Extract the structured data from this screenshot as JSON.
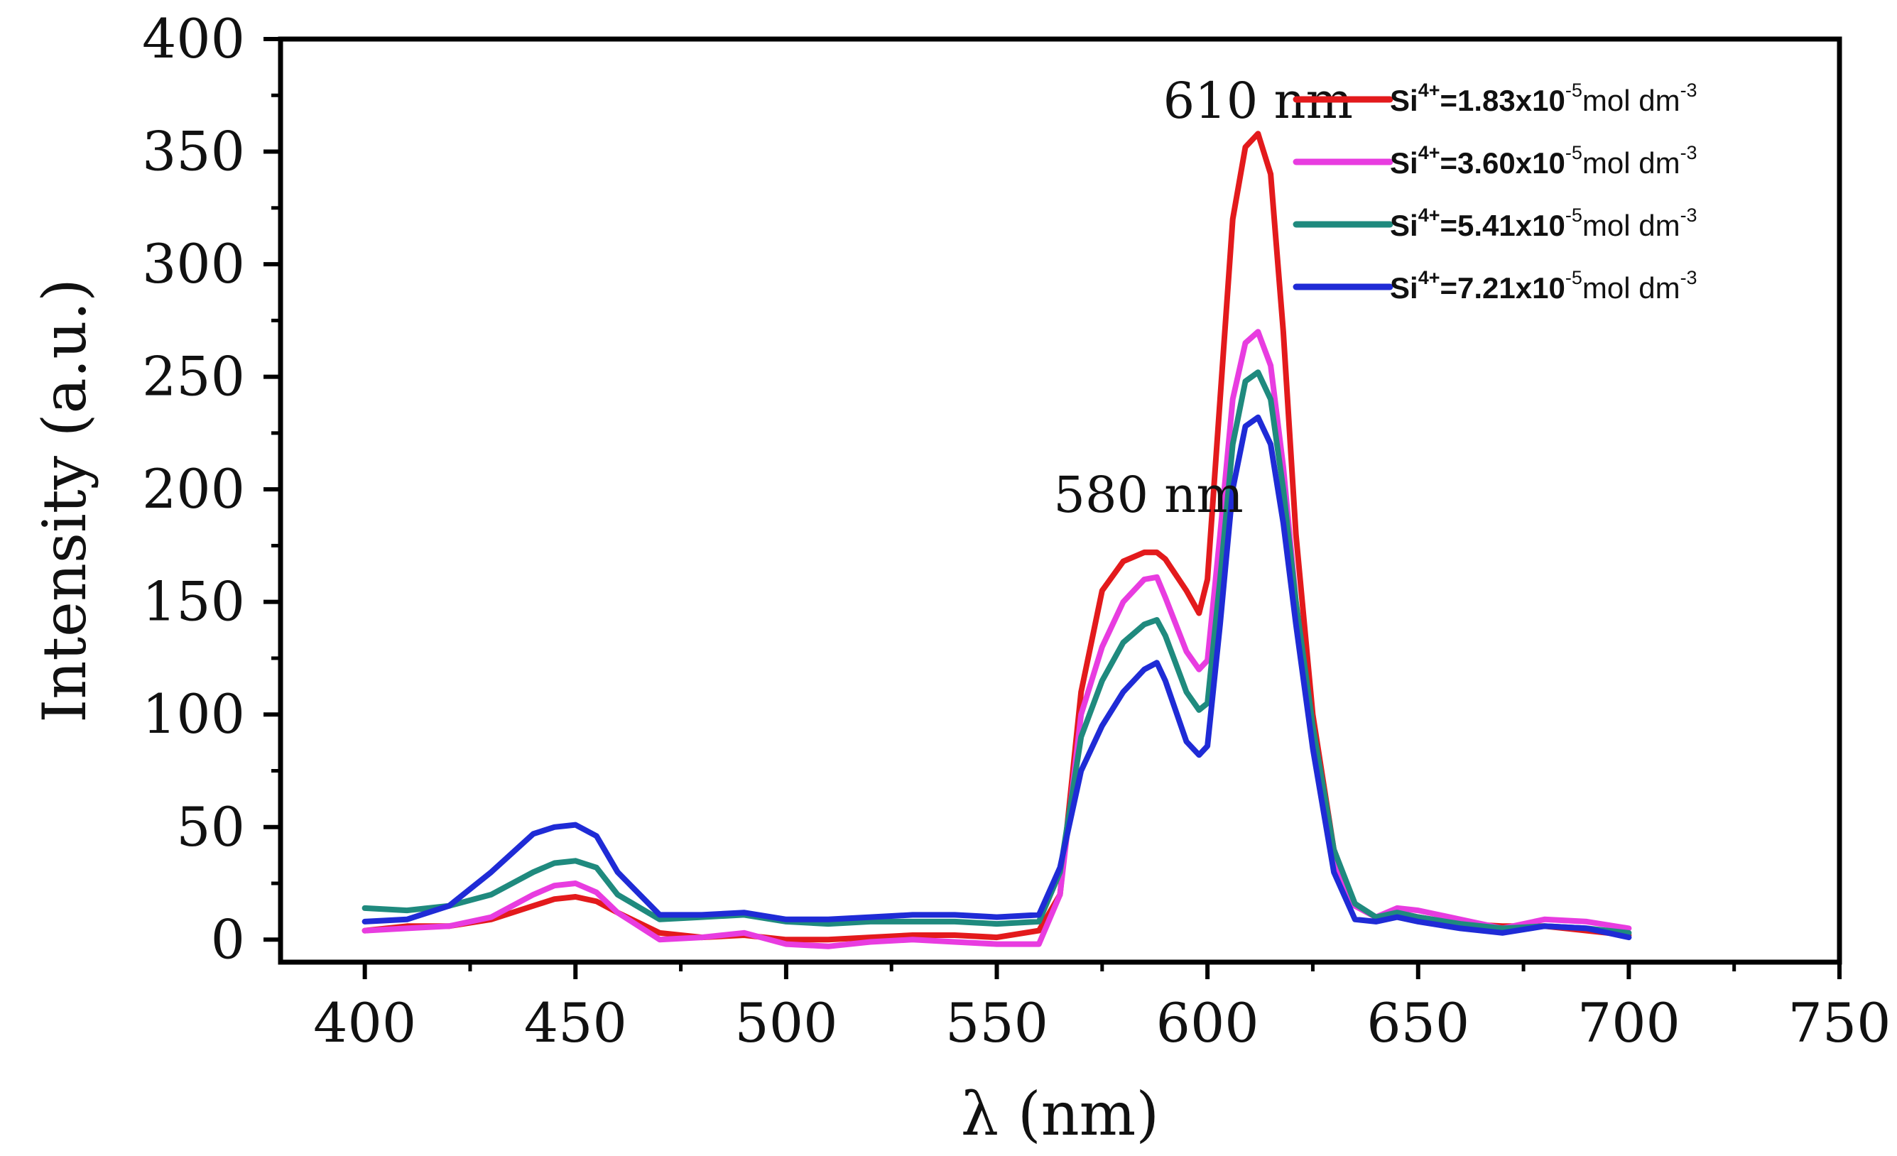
{
  "chart_data": {
    "type": "line",
    "title": "",
    "xlabel": "λ (nm)",
    "ylabel": "Intensity (a.u.)",
    "xlim": [
      380,
      750
    ],
    "ylim": [
      -10,
      400
    ],
    "x_ticks": [
      400,
      450,
      500,
      550,
      600,
      650,
      700,
      750
    ],
    "y_ticks": [
      0,
      50,
      100,
      150,
      200,
      250,
      300,
      350,
      400
    ],
    "grid": false,
    "legend_position": "top-right",
    "annotations": [
      {
        "text": "610 nm",
        "x": 612,
        "y": 365
      },
      {
        "text": "580 nm",
        "x": 586,
        "y": 190
      }
    ],
    "series": [
      {
        "name": "Si4+=1.83x10-5mol dm-3",
        "legend": {
          "species": "Si",
          "charge": "4+",
          "eq": "=1.83x10",
          "exp": "-5",
          "unit": "mol dm",
          "unit_exp": "-3"
        },
        "color": "#e31a1c",
        "x": [
          400,
          410,
          420,
          430,
          440,
          445,
          450,
          455,
          460,
          470,
          480,
          490,
          500,
          510,
          520,
          530,
          540,
          550,
          560,
          565,
          570,
          575,
          580,
          585,
          588,
          590,
          595,
          598,
          600,
          603,
          606,
          609,
          612,
          615,
          618,
          621,
          625,
          630,
          635,
          640,
          645,
          650,
          660,
          670,
          680,
          690,
          700
        ],
        "y": [
          4,
          6,
          6,
          9,
          15,
          18,
          19,
          17,
          12,
          3,
          1,
          2,
          0,
          0,
          1,
          2,
          2,
          1,
          4,
          20,
          110,
          155,
          168,
          172,
          172,
          169,
          155,
          145,
          160,
          240,
          320,
          352,
          358,
          340,
          270,
          180,
          100,
          40,
          15,
          10,
          12,
          10,
          7,
          6,
          6,
          4,
          2
        ]
      },
      {
        "name": "Si4+=3.60x10-5mol dm-3",
        "legend": {
          "species": "Si",
          "charge": "4+",
          "eq": "=3.60x10",
          "exp": "-5",
          "unit": "mol dm",
          "unit_exp": "-3"
        },
        "color": "#e83ce0",
        "x": [
          400,
          410,
          420,
          430,
          440,
          445,
          450,
          455,
          460,
          470,
          480,
          490,
          500,
          510,
          520,
          530,
          540,
          550,
          560,
          565,
          570,
          575,
          580,
          585,
          588,
          590,
          595,
          598,
          600,
          603,
          606,
          609,
          612,
          615,
          618,
          621,
          625,
          630,
          635,
          640,
          645,
          650,
          660,
          670,
          680,
          690,
          700
        ],
        "y": [
          4,
          5,
          6,
          10,
          20,
          24,
          25,
          21,
          12,
          0,
          1,
          3,
          -2,
          -3,
          -1,
          0,
          -1,
          -2,
          -2,
          20,
          100,
          130,
          150,
          160,
          161,
          152,
          128,
          120,
          124,
          180,
          240,
          265,
          270,
          255,
          210,
          150,
          90,
          35,
          15,
          10,
          14,
          13,
          9,
          5,
          9,
          8,
          5
        ]
      },
      {
        "name": "Si4+=5.41x10-5mol dm-3",
        "legend": {
          "species": "Si",
          "charge": "4+",
          "eq": "=5.41x10",
          "exp": "-5",
          "unit": "mol dm",
          "unit_exp": "-3"
        },
        "color": "#1f8a7e",
        "x": [
          400,
          410,
          420,
          430,
          440,
          445,
          450,
          455,
          460,
          470,
          480,
          490,
          500,
          510,
          520,
          530,
          540,
          550,
          560,
          565,
          570,
          575,
          580,
          585,
          588,
          590,
          595,
          598,
          600,
          603,
          606,
          609,
          612,
          615,
          618,
          621,
          625,
          630,
          635,
          640,
          645,
          650,
          660,
          670,
          680,
          690,
          700
        ],
        "y": [
          14,
          13,
          15,
          20,
          30,
          34,
          35,
          32,
          20,
          9,
          10,
          11,
          8,
          7,
          8,
          8,
          8,
          7,
          8,
          30,
          90,
          115,
          132,
          140,
          142,
          135,
          110,
          102,
          105,
          160,
          220,
          248,
          252,
          240,
          200,
          150,
          95,
          40,
          16,
          10,
          12,
          10,
          7,
          5,
          6,
          5,
          3
        ]
      },
      {
        "name": "Si4+=7.21x10-5mol dm-3",
        "legend": {
          "species": "Si",
          "charge": "4+",
          "eq": "=7.21x10",
          "exp": "-5",
          "unit": "mol dm",
          "unit_exp": "-3"
        },
        "color": "#1f2bd6",
        "x": [
          400,
          410,
          420,
          430,
          440,
          445,
          450,
          455,
          460,
          470,
          480,
          490,
          500,
          510,
          520,
          530,
          540,
          550,
          560,
          565,
          570,
          575,
          580,
          585,
          588,
          590,
          595,
          598,
          600,
          603,
          606,
          609,
          612,
          615,
          618,
          621,
          625,
          630,
          635,
          640,
          645,
          650,
          660,
          670,
          680,
          690,
          700
        ],
        "y": [
          8,
          9,
          15,
          30,
          47,
          50,
          51,
          46,
          30,
          11,
          11,
          12,
          9,
          9,
          10,
          11,
          11,
          10,
          11,
          32,
          75,
          95,
          110,
          120,
          123,
          115,
          88,
          82,
          86,
          140,
          200,
          228,
          232,
          220,
          185,
          140,
          85,
          30,
          9,
          8,
          10,
          8,
          5,
          3,
          6,
          5,
          1
        ]
      }
    ]
  }
}
